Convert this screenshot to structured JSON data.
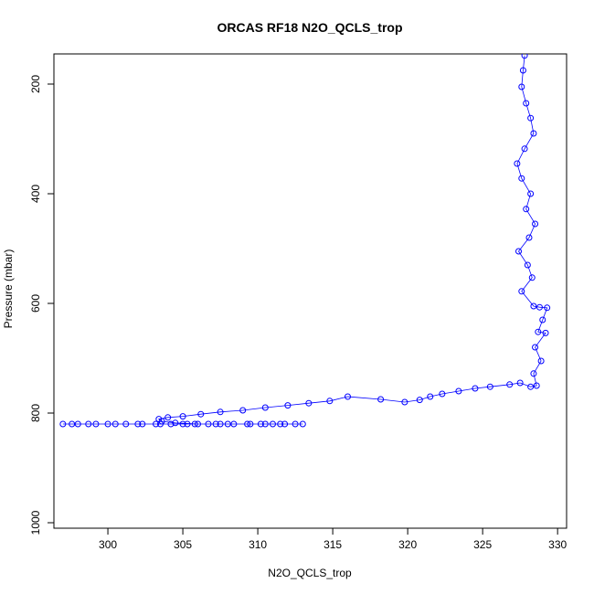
{
  "chart_data": {
    "type": "scatter",
    "title": "ORCAS RF18 N2O_QCLS_trop",
    "xlabel": "N2O_QCLS_trop",
    "ylabel": "Pressure (mbar)",
    "xlim": [
      296.4,
      330.6
    ],
    "ylim": [
      1010,
      145
    ],
    "y_inverted": true,
    "grid": false,
    "x_ticks": [
      300,
      305,
      310,
      315,
      320,
      325,
      330
    ],
    "y_ticks": [
      200,
      400,
      600,
      800,
      1000
    ],
    "series": [
      {
        "color": "#0000ff",
        "marker": "open-circle",
        "line": true,
        "points": [
          [
            327.8,
            148
          ],
          [
            327.7,
            175
          ],
          [
            327.6,
            205
          ],
          [
            327.9,
            235
          ],
          [
            328.2,
            262
          ],
          [
            328.4,
            290
          ],
          [
            327.8,
            318
          ],
          [
            327.3,
            345
          ],
          [
            327.6,
            372
          ],
          [
            328.2,
            400
          ],
          [
            327.9,
            428
          ],
          [
            328.5,
            455
          ],
          [
            328.1,
            480
          ],
          [
            327.4,
            505
          ],
          [
            328.0,
            530
          ],
          [
            328.3,
            553
          ],
          [
            327.6,
            578
          ],
          [
            328.4,
            605
          ],
          [
            328.8,
            607
          ],
          [
            329.3,
            608
          ],
          [
            329.0,
            630
          ],
          [
            328.7,
            652
          ],
          [
            329.2,
            654
          ],
          [
            328.5,
            680
          ],
          [
            328.9,
            705
          ],
          [
            328.4,
            728
          ],
          [
            328.6,
            750
          ],
          [
            328.2,
            752
          ],
          [
            327.5,
            745
          ],
          [
            326.8,
            748
          ],
          [
            325.5,
            752
          ],
          [
            324.5,
            755
          ],
          [
            323.4,
            760
          ],
          [
            322.3,
            765
          ],
          [
            321.5,
            770
          ],
          [
            320.8,
            776
          ],
          [
            319.8,
            780
          ],
          [
            318.2,
            775
          ],
          [
            316.0,
            770
          ],
          [
            314.8,
            778
          ],
          [
            313.4,
            782
          ],
          [
            312.0,
            786
          ],
          [
            310.5,
            790
          ],
          [
            309.0,
            795
          ],
          [
            307.5,
            798
          ],
          [
            306.2,
            802
          ],
          [
            305.0,
            806
          ],
          [
            304.0,
            808
          ],
          [
            303.4,
            811
          ],
          [
            303.6,
            815
          ],
          [
            304.5,
            818
          ],
          [
            306.0,
            820
          ],
          [
            308.0,
            820
          ],
          [
            310.5,
            820
          ],
          [
            313.0,
            820
          ],
          [
            311.5,
            820
          ],
          [
            309.5,
            820
          ],
          [
            307.2,
            820
          ],
          [
            305.3,
            820
          ],
          [
            303.5,
            820
          ],
          [
            302.0,
            820
          ],
          [
            300.5,
            820
          ],
          [
            299.2,
            820
          ],
          [
            298.0,
            820
          ],
          [
            297.0,
            820
          ],
          [
            297.6,
            820
          ],
          [
            298.7,
            820
          ],
          [
            300.0,
            820
          ],
          [
            301.2,
            820
          ],
          [
            302.3,
            820
          ],
          [
            303.2,
            820
          ],
          [
            304.2,
            820
          ],
          [
            305.0,
            820
          ],
          [
            305.8,
            820
          ],
          [
            306.7,
            820
          ],
          [
            307.5,
            820
          ],
          [
            308.4,
            820
          ],
          [
            309.3,
            820
          ],
          [
            310.2,
            820
          ],
          [
            311.0,
            820
          ],
          [
            311.8,
            820
          ],
          [
            312.5,
            820
          ]
        ]
      }
    ]
  }
}
